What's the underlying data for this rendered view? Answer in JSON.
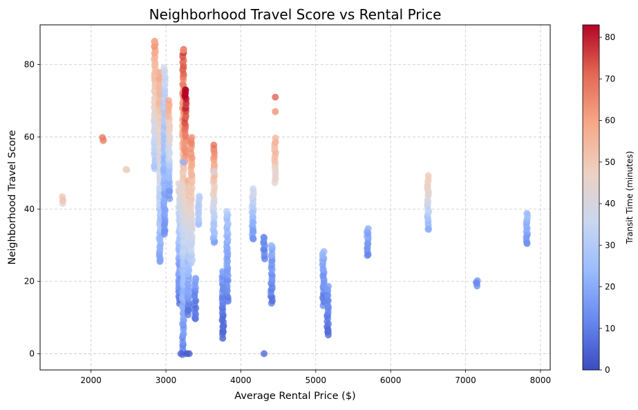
{
  "chart_data": {
    "type": "scatter",
    "title": "Neighborhood Travel Score vs Rental Price",
    "xlabel": "Average Rental Price ($)",
    "ylabel": "Neighborhood Travel Score",
    "xlim": [
      1320,
      8130
    ],
    "ylim": [
      -4.5,
      91
    ],
    "xticks": [
      2000,
      3000,
      4000,
      5000,
      6000,
      7000,
      8000
    ],
    "yticks": [
      0,
      20,
      40,
      60,
      80
    ],
    "grid": true,
    "colorbar": {
      "label": "Transit Time (minutes)",
      "range": [
        0,
        83
      ],
      "ticks": [
        0,
        10,
        20,
        30,
        40,
        50,
        60,
        70,
        80
      ],
      "colormap": "coolwarm",
      "colors": [
        "#3b4cc0",
        "#6788ee",
        "#9abbff",
        "#c9d7f0",
        "#edd1c2",
        "#f7a889",
        "#e26952",
        "#b40426"
      ]
    },
    "clusters": [
      {
        "x": 1620,
        "y_min": 41.5,
        "y_max": 43.2,
        "t_min": 44,
        "t_max": 50
      },
      {
        "x": 2160,
        "y_min": 58.8,
        "y_max": 59.6,
        "t_min": 64,
        "t_max": 66
      },
      {
        "x": 2470,
        "y_min": 51,
        "y_max": 51,
        "t_min": 48,
        "t_max": 48
      },
      {
        "x": 2850,
        "y_min": 51,
        "y_max": 86.5,
        "t_min": 28,
        "t_max": 62
      },
      {
        "x": 2920,
        "y_min": 25.5,
        "y_max": 78,
        "t_min": 18,
        "t_max": 60
      },
      {
        "x": 2980,
        "y_min": 33,
        "y_max": 79,
        "t_min": 14,
        "t_max": 36
      },
      {
        "x": 3040,
        "y_min": 43,
        "y_max": 70,
        "t_min": 15,
        "t_max": 60
      },
      {
        "x": 3180,
        "y_min": 14,
        "y_max": 47,
        "t_min": 8,
        "t_max": 42
      },
      {
        "x": 3230,
        "y_min": 0,
        "y_max": 84,
        "t_min": 10,
        "t_max": 75
      },
      {
        "x": 3260,
        "y_min": 53,
        "y_max": 73,
        "t_min": 58,
        "t_max": 83
      },
      {
        "x": 3300,
        "y_min": 11,
        "y_max": 48,
        "t_min": 8,
        "t_max": 55
      },
      {
        "x": 3340,
        "y_min": 25,
        "y_max": 60,
        "t_min": 30,
        "t_max": 66
      },
      {
        "x": 3390,
        "y_min": 9.5,
        "y_max": 21,
        "t_min": 6,
        "t_max": 16
      },
      {
        "x": 3440,
        "y_min": 35.5,
        "y_max": 43.5,
        "t_min": 26,
        "t_max": 34
      },
      {
        "x": 3640,
        "y_min": 30.5,
        "y_max": 57.5,
        "t_min": 18,
        "t_max": 68
      },
      {
        "x": 3760,
        "y_min": 4.5,
        "y_max": 23,
        "t_min": 4,
        "t_max": 16
      },
      {
        "x": 3820,
        "y_min": 14.5,
        "y_max": 39.5,
        "t_min": 10,
        "t_max": 28
      },
      {
        "x": 4160,
        "y_min": 31.5,
        "y_max": 45.5,
        "t_min": 14,
        "t_max": 38
      },
      {
        "x": 4310,
        "y_min": 26.5,
        "y_max": 32.5,
        "t_min": 10,
        "t_max": 14
      },
      {
        "x": 4410,
        "y_min": 14,
        "y_max": 30,
        "t_min": 8,
        "t_max": 20
      },
      {
        "x": 4460,
        "y_min": 47.5,
        "y_max": 59.5,
        "t_min": 42,
        "t_max": 58
      },
      {
        "x": 5100,
        "y_min": 13.5,
        "y_max": 28.5,
        "t_min": 10,
        "t_max": 20
      },
      {
        "x": 5160,
        "y_min": 5.5,
        "y_max": 18.5,
        "t_min": 4,
        "t_max": 16
      },
      {
        "x": 5690,
        "y_min": 27,
        "y_max": 34.5,
        "t_min": 12,
        "t_max": 20
      },
      {
        "x": 6500,
        "y_min": 34.5,
        "y_max": 49,
        "t_min": 20,
        "t_max": 52
      },
      {
        "x": 7150,
        "y_min": 19,
        "y_max": 20,
        "t_min": 12,
        "t_max": 14
      },
      {
        "x": 7820,
        "y_min": 30.5,
        "y_max": 39,
        "t_min": 14,
        "t_max": 24
      }
    ],
    "points": [
      {
        "x": 2850,
        "y": 86.5,
        "t": 58
      },
      {
        "x": 3230,
        "y": 84,
        "t": 63
      },
      {
        "x": 3260,
        "y": 73,
        "t": 83
      },
      {
        "x": 3260,
        "y": 72,
        "t": 83
      },
      {
        "x": 4460,
        "y": 71,
        "t": 72
      },
      {
        "x": 4460,
        "y": 67,
        "t": 64
      },
      {
        "x": 3200,
        "y": 0,
        "t": 4
      },
      {
        "x": 3280,
        "y": 0,
        "t": 2
      },
      {
        "x": 3310,
        "y": 0,
        "t": 3
      },
      {
        "x": 4310,
        "y": 0,
        "t": 5
      },
      {
        "x": 3760,
        "y": 6,
        "t": 6
      },
      {
        "x": 3760,
        "y": 7.5,
        "t": 7
      },
      {
        "x": 5160,
        "y": 6,
        "t": 7
      },
      {
        "x": 3300,
        "y": 12,
        "t": 8
      },
      {
        "x": 3390,
        "y": 10,
        "t": 9
      },
      {
        "x": 2920,
        "y": 25.5,
        "t": 18
      },
      {
        "x": 2980,
        "y": 34,
        "t": 14
      },
      {
        "x": 6500,
        "y": 34.5,
        "t": 20
      },
      {
        "x": 7820,
        "y": 30.5,
        "t": 14
      },
      {
        "x": 7150,
        "y": 19.5,
        "t": 12
      },
      {
        "x": 4160,
        "y": 32,
        "t": 14
      },
      {
        "x": 4160,
        "y": 34,
        "t": 16
      },
      {
        "x": 3230,
        "y": 53,
        "t": 22
      },
      {
        "x": 3640,
        "y": 50.5,
        "t": 40
      },
      {
        "x": 3040,
        "y": 45,
        "t": 16
      }
    ]
  }
}
